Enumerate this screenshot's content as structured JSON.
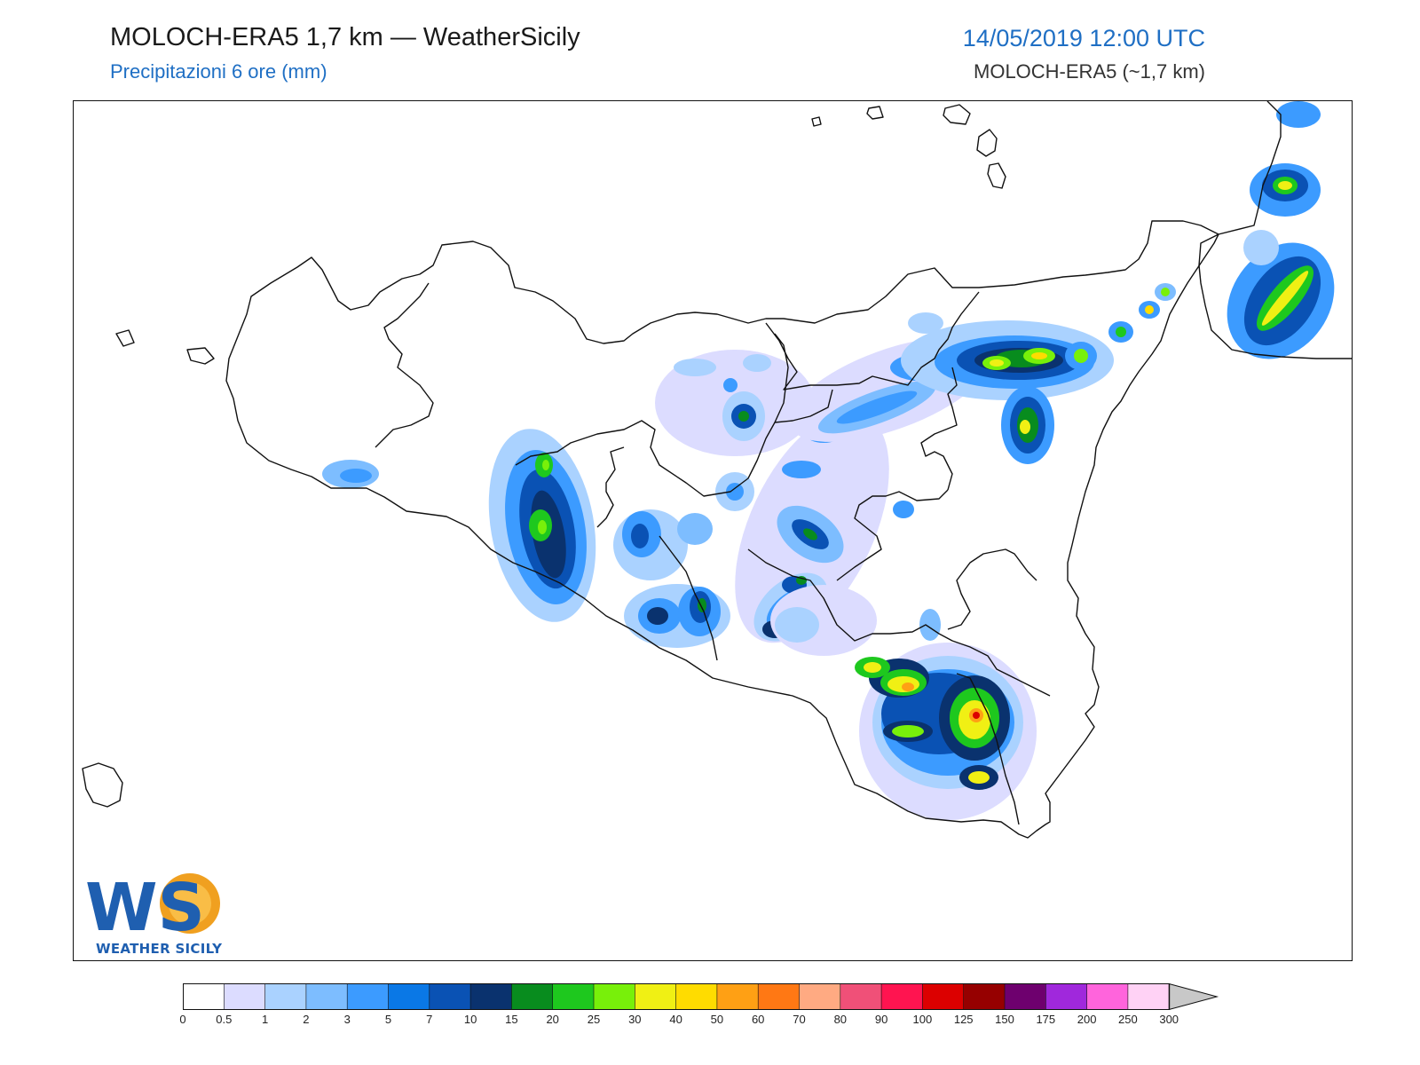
{
  "header": {
    "title": "MOLOCH-ERA5 1,7 km — WeatherSicily",
    "subtitle": "Precipitazioni 6 ore (mm)",
    "datetime": "14/05/2019 12:00 UTC",
    "model": "MOLOCH-ERA5 (~1,7 km)"
  },
  "logo": {
    "mark": "WS",
    "name": "WEATHER SICILY"
  },
  "legend": {
    "unit": "mm",
    "ticks": [
      "0",
      "0.5",
      "1",
      "2",
      "3",
      "5",
      "7",
      "10",
      "15",
      "20",
      "25",
      "30",
      "40",
      "50",
      "60",
      "70",
      "80",
      "90",
      "100",
      "125",
      "150",
      "175",
      "200",
      "250",
      "300"
    ],
    "colors": [
      "#ffffff",
      "#dcdcff",
      "#aad2ff",
      "#7dbdff",
      "#3c9bff",
      "#0a78e6",
      "#0a52b4",
      "#0a326e",
      "#088c1e",
      "#1ec81e",
      "#78f00a",
      "#f0f014",
      "#ffdc00",
      "#ffa014",
      "#ff7814",
      "#ffaa82",
      "#f05078",
      "#ff1450",
      "#dc0000",
      "#960000",
      "#6e006e",
      "#a028dc",
      "#ff64dc",
      "#ffd2f5"
    ],
    "overflow_color": "#c8c8c8"
  },
  "map": {
    "region": "Sicily",
    "variable": "6-hour precipitation"
  }
}
